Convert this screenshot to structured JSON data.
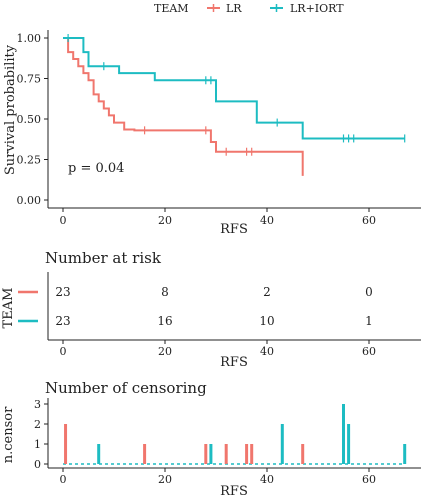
{
  "colors": {
    "lr": "#f0766d",
    "lr_iort": "#1dbcc2"
  },
  "legend": {
    "title": "TEAM",
    "items": [
      "LR",
      "LR+IORT"
    ]
  },
  "chart_data": [
    {
      "type": "line",
      "title": "",
      "xlabel": "RFS",
      "ylabel": "Survival probability",
      "xlim": [
        -3,
        70
      ],
      "ylim": [
        0,
        1
      ],
      "x_ticks": [
        0,
        20,
        40,
        60
      ],
      "y_ticks": [
        0.0,
        0.25,
        0.5,
        0.75,
        1.0
      ],
      "y_tick_labels": [
        "0.00",
        "0.25",
        "0.50",
        "0.75",
        "1.00"
      ],
      "annotation": "p = 0.04",
      "series": [
        {
          "name": "LR",
          "x": [
            0,
            1,
            2,
            3,
            4,
            5,
            6,
            7,
            8,
            9,
            10,
            12,
            14,
            29,
            30,
            47
          ],
          "y": [
            1.0,
            0.913,
            0.87,
            0.826,
            0.783,
            0.739,
            0.652,
            0.609,
            0.565,
            0.522,
            0.478,
            0.435,
            0.43,
            0.358,
            0.298,
            0.149
          ],
          "censor_x": [
            16,
            28,
            32,
            36,
            37
          ],
          "censor_y": [
            0.43,
            0.43,
            0.298,
            0.298,
            0.298
          ]
        },
        {
          "name": "LR+IORT",
          "x": [
            0,
            4,
            5,
            11,
            18,
            30,
            38,
            47
          ],
          "y": [
            1.0,
            0.913,
            0.826,
            0.783,
            0.739,
            0.609,
            0.478,
            0.38
          ],
          "censor_x": [
            1,
            8,
            28,
            29,
            42,
            55,
            56,
            57,
            67
          ],
          "censor_y": [
            1.0,
            0.826,
            0.739,
            0.739,
            0.478,
            0.38,
            0.38,
            0.38,
            0.38
          ]
        }
      ]
    },
    {
      "type": "table",
      "title": "Number at risk",
      "xlabel": "RFS",
      "ylabel": "TEAM",
      "x_ticks": [
        0,
        20,
        40,
        60
      ],
      "columns": [
        0,
        20,
        40,
        60
      ],
      "rows": [
        {
          "name": "LR",
          "values": [
            23,
            8,
            2,
            0
          ]
        },
        {
          "name": "LR+IORT",
          "values": [
            23,
            16,
            10,
            1
          ]
        }
      ]
    },
    {
      "type": "bar",
      "title": "Number of censoring",
      "xlabel": "RFS",
      "ylabel": "n.censor",
      "x_ticks": [
        0,
        20,
        40,
        60
      ],
      "y_ticks": [
        0,
        1,
        2,
        3
      ],
      "ylim": [
        0,
        3
      ],
      "series": [
        {
          "name": "LR",
          "x": [
            0.5,
            16,
            28,
            32,
            36,
            37,
            47
          ],
          "values": [
            2,
            1,
            1,
            1,
            1,
            1,
            1
          ]
        },
        {
          "name": "LR+IORT",
          "x": [
            7,
            29,
            43,
            55,
            56,
            67
          ],
          "values": [
            1,
            1,
            2,
            3,
            2,
            1
          ]
        }
      ]
    }
  ]
}
